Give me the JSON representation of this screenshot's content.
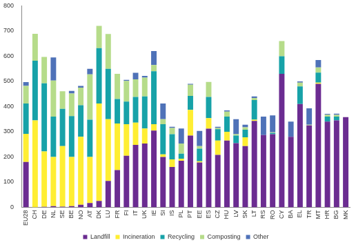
{
  "chart_data": {
    "type": "bar",
    "stacked": true,
    "grid": false,
    "legend": "bottom",
    "categories": [
      "EU28",
      "CH",
      "DE",
      "NL",
      "SE",
      "BE",
      "NO",
      "AT",
      "DK",
      "LU",
      "FR",
      "FI",
      "IT",
      "UK",
      "IE",
      "SI",
      "IS",
      "PL",
      "PT",
      "EE",
      "ES",
      "CZ",
      "HU",
      "LV",
      "SK",
      "LT",
      "RS",
      "RO",
      "CY",
      "BA",
      "EL",
      "TR",
      "MT",
      "HR",
      "BG",
      "MK"
    ],
    "ylim": [
      0,
      800
    ],
    "yticks": [
      0,
      100,
      200,
      300,
      400,
      500,
      600,
      700,
      800
    ],
    "series": [
      {
        "name": "Landfill",
        "color": "#6b2c91",
        "values": [
          180,
          0,
          2,
          5,
          3,
          5,
          10,
          17,
          25,
          105,
          148,
          205,
          248,
          253,
          305,
          200,
          160,
          185,
          285,
          178,
          312,
          208,
          265,
          255,
          243,
          343,
          287,
          290,
          530,
          280,
          410,
          325,
          490,
          340,
          345,
          358
        ]
      },
      {
        "name": "Incineration",
        "color": "#ffee33",
        "values": [
          112,
          345,
          220,
          195,
          240,
          195,
          270,
          183,
          387,
          245,
          185,
          125,
          88,
          60,
          25,
          10,
          30,
          8,
          102,
          5,
          42,
          57,
          35,
          0,
          35,
          5,
          0,
          0,
          0,
          0,
          0,
          0,
          5,
          0,
          0,
          0
        ]
      },
      {
        "name": "Recycling",
        "color": "#17a2a8",
        "values": [
          120,
          237,
          270,
          160,
          148,
          162,
          125,
          148,
          220,
          200,
          97,
          90,
          102,
          127,
          210,
          120,
          100,
          20,
          55,
          50,
          84,
          45,
          60,
          30,
          30,
          78,
          0,
          5,
          70,
          0,
          70,
          0,
          40,
          20,
          15,
          0
        ]
      },
      {
        "name": "Composting",
        "color": "#b6dc8a",
        "values": [
          70,
          107,
          105,
          143,
          70,
          90,
          70,
          180,
          88,
          138,
          100,
          82,
          70,
          75,
          25,
          20,
          25,
          40,
          45,
          10,
          60,
          5,
          20,
          5,
          10,
          8,
          0,
          3,
          60,
          0,
          15,
          3,
          20,
          8,
          7,
          0
        ]
      },
      {
        "name": "Other",
        "color": "#4f72b8",
        "values": [
          15,
          0,
          0,
          92,
          0,
          10,
          7,
          22,
          0,
          0,
          0,
          4,
          26,
          7,
          55,
          62,
          5,
          60,
          3,
          60,
          0,
          5,
          5,
          60,
          10,
          6,
          73,
          67,
          0,
          60,
          5,
          65,
          30,
          3,
          5,
          0
        ]
      }
    ]
  }
}
